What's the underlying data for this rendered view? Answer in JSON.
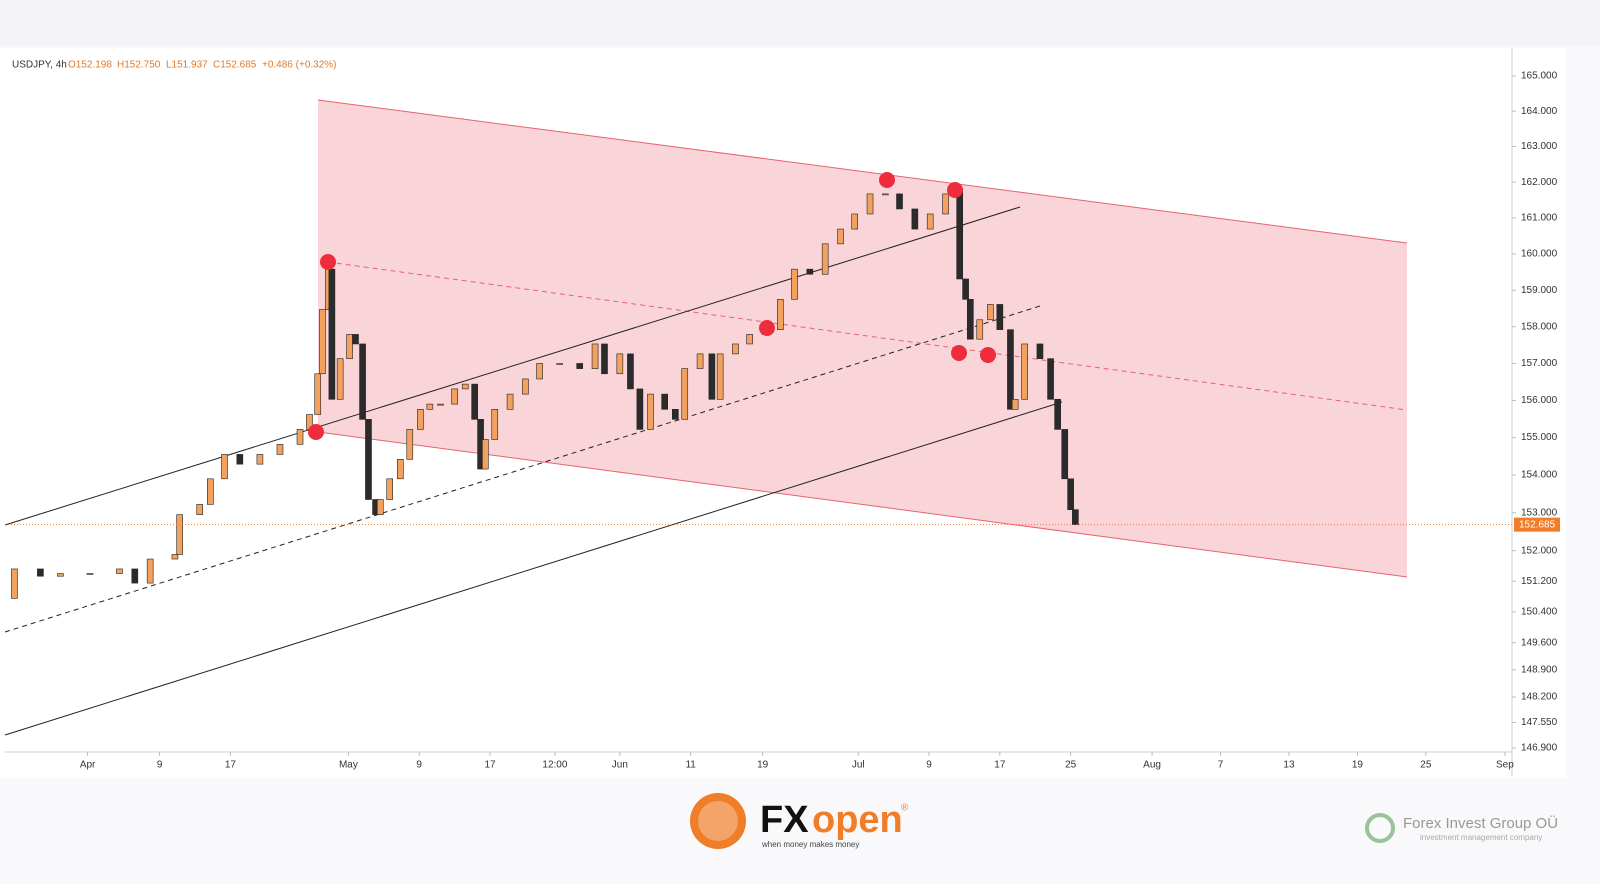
{
  "chart_data": {
    "type": "candlestick",
    "legend": {
      "symbol": "USDJPY, 4h",
      "open": "O152.198",
      "high": "H152.750",
      "low": "L151.937",
      "close": "C152.685",
      "change": "+0.486 (+0.32%)"
    },
    "x": [
      0,
      0.8,
      3.0,
      4.7,
      7.2,
      9.7,
      11.0,
      12.3,
      14.4,
      14.8,
      16.5,
      17.4,
      18.6,
      19.9,
      21.6,
      23.3,
      25.0,
      25.8,
      26.5,
      26.9,
      27.4,
      27.7,
      28.4,
      29.2,
      29.7,
      30.3,
      30.8,
      31.4,
      31.8,
      32.6,
      33.5,
      34.3,
      35.2,
      36.0,
      36.9,
      38.1,
      39.0,
      39.8,
      40.3,
      40.7,
      41.5,
      42.8,
      44.1,
      45.3,
      47.0,
      48.7,
      50.0,
      50.8,
      52.1,
      53.0,
      53.8,
      54.7,
      55.9,
      56.8,
      57.6,
      58.9,
      59.9,
      60.6,
      61.9,
      63.1,
      64.4,
      65.7,
      66.9,
      68.2,
      69.5,
      70.8,
      72.0,
      73.3,
      74.6,
      75.8,
      77.1,
      78.4,
      79.7,
      80.5,
      80.9,
      81.4,
      81.8,
      82.6,
      83.5,
      84.3,
      85.2,
      85.6,
      86.4,
      87.7,
      88.6,
      89.2,
      89.8,
      90.3,
      90.7
    ],
    "values": [
      150.75,
      151.52,
      151.33,
      151.4,
      151.4,
      151.52,
      151.15,
      151.78,
      151.9,
      152.95,
      153.22,
      153.9,
      154.55,
      154.29,
      154.55,
      154.82,
      155.22,
      155.62,
      156.72,
      158.47,
      159.58,
      156.03,
      157.13,
      157.79,
      157.53,
      155.49,
      153.35,
      152.95,
      153.35,
      153.9,
      154.42,
      155.22,
      155.76,
      155.9,
      155.9,
      156.31,
      156.44,
      155.49,
      154.16,
      154.95,
      155.76,
      156.17,
      156.58,
      157.0,
      157.0,
      156.86,
      157.53,
      156.72,
      157.26,
      156.31,
      155.22,
      156.17,
      155.76,
      155.49,
      156.86,
      157.26,
      156.03,
      157.26,
      157.53,
      157.79,
      157.92,
      158.75,
      159.58,
      159.44,
      160.28,
      160.69,
      161.11,
      161.67,
      161.67,
      161.25,
      160.69,
      161.11,
      161.67,
      161.81,
      159.31,
      158.75,
      157.66,
      158.19,
      158.61,
      157.92,
      155.76,
      156.03,
      157.53,
      157.13,
      156.03,
      155.22,
      153.9,
      153.08,
      152.685
    ],
    "up_color": "#f2a15e",
    "down_color": "#2b2b2b",
    "log_scale": true,
    "xlim": [
      0,
      127.7
    ],
    "xticks": [
      {
        "value": 7.0,
        "label": "Apr"
      },
      {
        "value": 13.1,
        "label": "9"
      },
      {
        "value": 19.1,
        "label": "17"
      },
      {
        "value": 29.1,
        "label": "May"
      },
      {
        "value": 35.1,
        "label": "9"
      },
      {
        "value": 41.1,
        "label": "17"
      },
      {
        "value": 46.6,
        "label": "12:00"
      },
      {
        "value": 52.1,
        "label": "Jun"
      },
      {
        "value": 58.1,
        "label": "11"
      },
      {
        "value": 64.2,
        "label": "19"
      },
      {
        "value": 72.3,
        "label": "Jul"
      },
      {
        "value": 78.3,
        "label": "9"
      },
      {
        "value": 84.3,
        "label": "17"
      },
      {
        "value": 90.3,
        "label": "25"
      },
      {
        "value": 97.2,
        "label": "Aug"
      },
      {
        "value": 103.0,
        "label": "7"
      },
      {
        "value": 108.8,
        "label": "13"
      },
      {
        "value": 114.6,
        "label": "19"
      },
      {
        "value": 120.4,
        "label": "25"
      },
      {
        "value": 127.1,
        "label": "Sep"
      }
    ],
    "ylim": [
      146.8,
      165.8
    ],
    "yticks": [
      {
        "value": 165,
        "label": "165.000"
      },
      {
        "value": 164,
        "label": "164.000"
      },
      {
        "value": 163,
        "label": "163.000"
      },
      {
        "value": 162,
        "label": "162.000"
      },
      {
        "value": 161,
        "label": "161.000"
      },
      {
        "value": 160,
        "label": "160.000"
      },
      {
        "value": 159,
        "label": "159.000"
      },
      {
        "value": 158,
        "label": "158.000"
      },
      {
        "value": 157,
        "label": "157.000"
      },
      {
        "value": 156,
        "label": "156.000"
      },
      {
        "value": 155,
        "label": "155.000"
      },
      {
        "value": 154,
        "label": "154.000"
      },
      {
        "value": 153,
        "label": "153.000"
      },
      {
        "value": 152,
        "label": "152.000"
      },
      {
        "value": 151.2,
        "label": "151.200"
      },
      {
        "value": 150.4,
        "label": "150.400"
      },
      {
        "value": 149.6,
        "label": "149.600"
      },
      {
        "value": 148.9,
        "label": "148.900"
      },
      {
        "value": 148.2,
        "label": "148.200"
      },
      {
        "value": 147.55,
        "label": "147.550"
      },
      {
        "value": 146.9,
        "label": "146.900"
      }
    ],
    "last_price": {
      "value": 152.685,
      "label": "152.685"
    },
    "last_price_color": "#f07d28"
  },
  "footer": {
    "brand_a": "FX",
    "brand_b": "open",
    "reg": "®",
    "tagline": "when money makes money",
    "company": "Forex Invest Group OÜ",
    "company_sub": "investment management company"
  }
}
